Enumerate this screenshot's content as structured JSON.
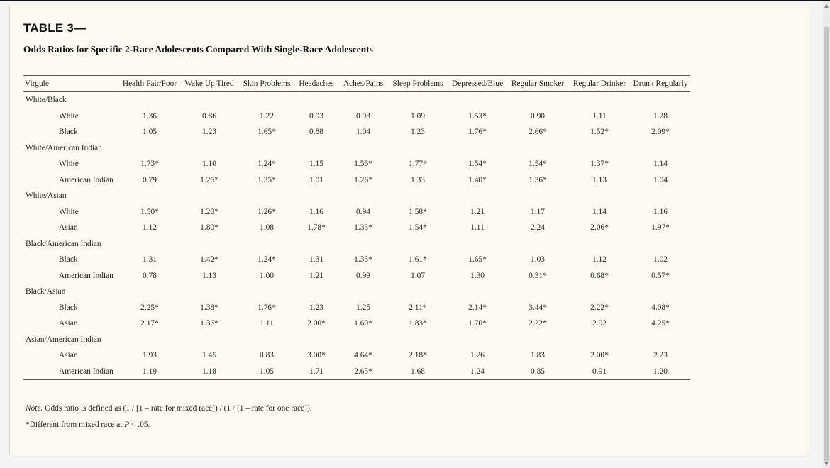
{
  "table": {
    "label": "TABLE 3—",
    "title": "Odds Ratios for Specific 2-Race Adolescents Compared With Single-Race Adolescents",
    "columns": [
      "Virgule",
      "Health Fair/Poor",
      "Wake Up Tired",
      "Skin Problems",
      "Headaches",
      "Aches/Pains",
      "Sleep Problems",
      "Depressed/Blue",
      "Regular Smoker",
      "Regular Drinker",
      "Drunk Regularly"
    ],
    "groups": [
      {
        "name": "White/Black",
        "rows": [
          {
            "label": "White",
            "values": [
              "1.36",
              "0.86",
              "1.22",
              "0.93",
              "0.93",
              "1.09",
              "1.53*",
              "0.90",
              "1.11",
              "1.28"
            ]
          },
          {
            "label": "Black",
            "values": [
              "1.05",
              "1.23",
              "1.65*",
              "0.88",
              "1.04",
              "1.23",
              "1.76*",
              "2.66*",
              "1.52*",
              "2.09*"
            ]
          }
        ]
      },
      {
        "name": "White/American Indian",
        "rows": [
          {
            "label": "White",
            "values": [
              "1.73*",
              "1.10",
              "1.24*",
              "1.15",
              "1.56*",
              "1.77*",
              "1.54*",
              "1.54*",
              "1.37*",
              "1.14"
            ]
          },
          {
            "label": "American Indian",
            "values": [
              "0.79",
              "1.26*",
              "1.35*",
              "1.01",
              "1.26*",
              "1.33",
              "1.40*",
              "1.36*",
              "1.13",
              "1.04"
            ]
          }
        ]
      },
      {
        "name": "White/Asian",
        "rows": [
          {
            "label": "White",
            "values": [
              "1.50*",
              "1.28*",
              "1.26*",
              "1.16",
              "0.94",
              "1.58*",
              "1.21",
              "1.17",
              "1.14",
              "1.16"
            ]
          },
          {
            "label": "Asian",
            "values": [
              "1.12",
              "1.80*",
              "1.08",
              "1.78*",
              "1.33*",
              "1.54*",
              "1.11",
              "2.24",
              "2.06*",
              "1.97*"
            ]
          }
        ]
      },
      {
        "name": "Black/American Indian",
        "rows": [
          {
            "label": "Black",
            "values": [
              "1.31",
              "1.42*",
              "1.24*",
              "1.31",
              "1.35*",
              "1.61*",
              "1.65*",
              "1.03",
              "1.12",
              "1.02"
            ]
          },
          {
            "label": "American Indian",
            "values": [
              "0.78",
              "1.13",
              "1.00",
              "1.21",
              "0.99",
              "1.07",
              "1.30",
              "0.31*",
              "0.68*",
              "0.57*"
            ]
          }
        ]
      },
      {
        "name": "Black/Asian",
        "rows": [
          {
            "label": "Black",
            "values": [
              "2.25*",
              "1.38*",
              "1.76*",
              "1.23",
              "1.25",
              "2.11*",
              "2.14*",
              "3.44*",
              "2.22*",
              "4.08*"
            ]
          },
          {
            "label": "Asian",
            "values": [
              "2.17*",
              "1.36*",
              "1.11",
              "2.00*",
              "1.60*",
              "1.83*",
              "1.70*",
              "2.22*",
              "2.92",
              "4.25*"
            ]
          }
        ]
      },
      {
        "name": "Asian/American Indian",
        "rows": [
          {
            "label": "Asian",
            "values": [
              "1.93",
              "1.45",
              "0.83",
              "3.00*",
              "4.64*",
              "2.18*",
              "1.26",
              "1.83",
              "2.00*",
              "2.23"
            ]
          },
          {
            "label": "American Indian",
            "values": [
              "1.19",
              "1.18",
              "1.05",
              "1.71",
              "2.65*",
              "1.68",
              "1.24",
              "0.85",
              "0.91",
              "1.20"
            ]
          }
        ]
      }
    ],
    "note_prefix": "Note.",
    "note_text": " Odds ratio is defined as (1 / [1 – rate for mixed race]) / (1 / [1 – rate for one race]).",
    "footnote_text": "*Different from mixed race at ",
    "footnote_p": "P",
    "footnote_value": " < .05."
  }
}
